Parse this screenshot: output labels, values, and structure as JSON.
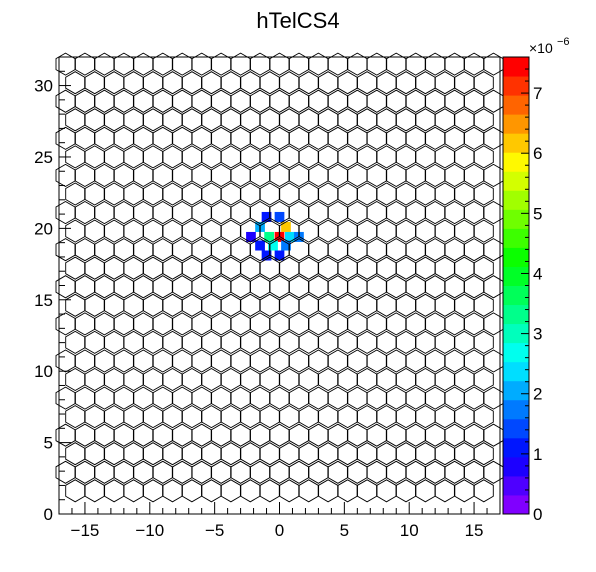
{
  "chart_data": {
    "type": "heatmap",
    "title": "hTelCS4",
    "xlabel": "",
    "ylabel": "",
    "xlim": [
      -17,
      17
    ],
    "ylim": [
      0,
      32
    ],
    "xticks": [
      -15,
      -10,
      -5,
      0,
      5,
      10,
      15
    ],
    "xtick_labels": [
      "−15",
      "−10",
      "−5",
      "0",
      "5",
      "10",
      "15"
    ],
    "yticks": [
      0,
      5,
      10,
      15,
      20,
      25,
      30
    ],
    "ytick_labels": [
      "0",
      "5",
      "10",
      "15",
      "20",
      "25",
      "30"
    ],
    "hex_grid": {
      "pitch": 1.5,
      "x_extent": 16.5,
      "y_min": 1.5,
      "y_max": 31.5
    },
    "zlim": [
      0,
      7.6e-06
    ],
    "z_multiplier_label": "×10",
    "z_multiplier_exponent": "−6",
    "palette_ticks": [
      0,
      1,
      2,
      3,
      4,
      5,
      6,
      7
    ],
    "palette_tick_labels": [
      "0",
      "1",
      "2",
      "3",
      "4",
      "5",
      "6",
      "7"
    ],
    "palette": "rainbow",
    "cells": [
      {
        "x": -1.0,
        "y": 20.8,
        "z": 1.1e-06
      },
      {
        "x": 0.0,
        "y": 20.8,
        "z": 1.3e-06
      },
      {
        "x": -1.5,
        "y": 20.1,
        "z": 2e-06
      },
      {
        "x": 0.5,
        "y": 20.1,
        "z": 6.2e-06
      },
      {
        "x": -2.2,
        "y": 19.4,
        "z": 8e-07
      },
      {
        "x": -0.8,
        "y": 19.4,
        "z": 3.2e-06
      },
      {
        "x": 0.0,
        "y": 19.4,
        "z": 7.3e-06
      },
      {
        "x": 0.8,
        "y": 19.4,
        "z": 2.4e-06
      },
      {
        "x": 1.5,
        "y": 19.4,
        "z": 1.8e-06
      },
      {
        "x": -1.5,
        "y": 18.8,
        "z": 1.2e-06
      },
      {
        "x": -0.5,
        "y": 18.8,
        "z": 2.8e-06
      },
      {
        "x": 0.5,
        "y": 18.8,
        "z": 1.6e-06
      },
      {
        "x": -1.0,
        "y": 18.1,
        "z": 1e-06
      },
      {
        "x": 0.0,
        "y": 18.1,
        "z": 1.1e-06
      }
    ]
  }
}
